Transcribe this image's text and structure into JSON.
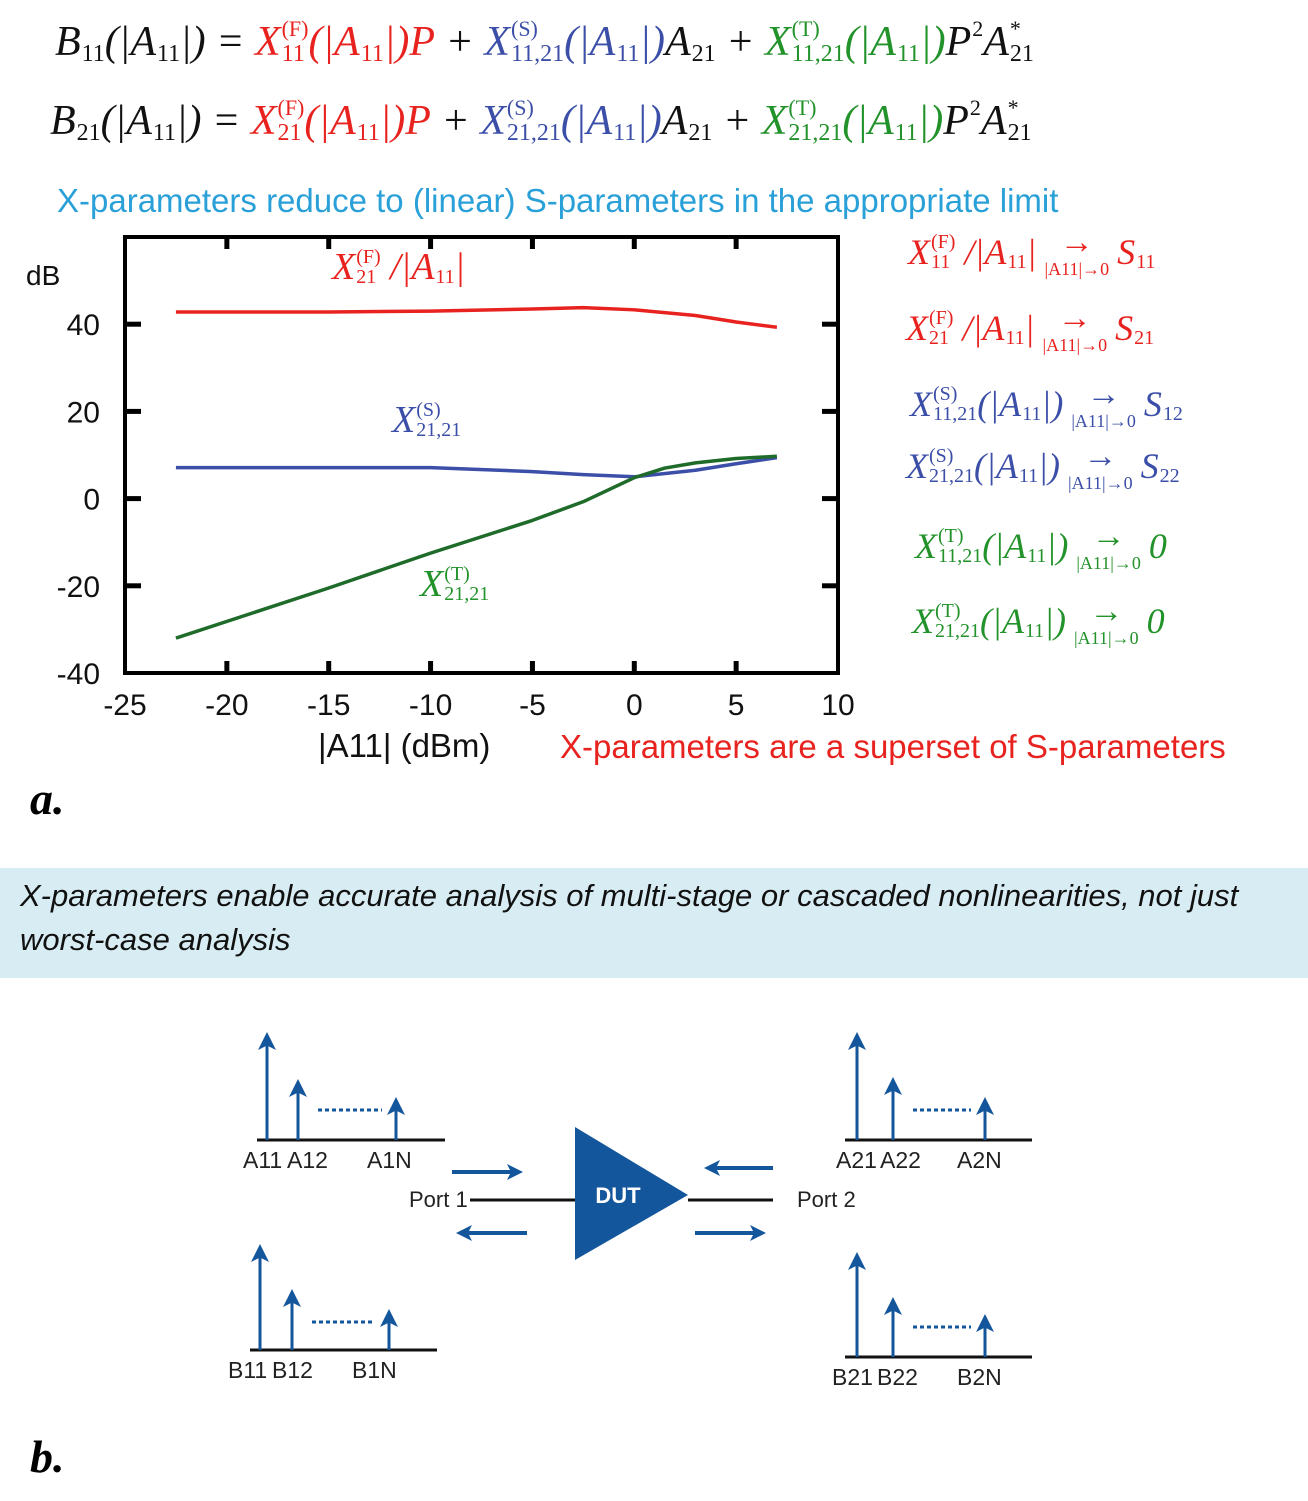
{
  "equations": [
    [
      {
        "b": "B",
        "sub": "11",
        "c": "k"
      },
      {
        "b": "(|",
        "c": "k"
      },
      {
        "b": "A",
        "sub": "11",
        "c": "k"
      },
      {
        "b": "|) = ",
        "c": "k"
      },
      {
        "b": "X",
        "sup": "(F)",
        "sub": "11",
        "c": "r"
      },
      {
        "b": "(|",
        "c": "r"
      },
      {
        "b": "A",
        "sub": "11",
        "c": "r"
      },
      {
        "b": "|)P",
        "c": "r"
      },
      {
        "b": " + ",
        "c": "k"
      },
      {
        "b": "X",
        "sup": "(S)",
        "sub": "11,21",
        "c": "b"
      },
      {
        "b": "(|",
        "c": "b"
      },
      {
        "b": "A",
        "sub": "11",
        "c": "b"
      },
      {
        "b": "|)",
        "c": "b"
      },
      {
        "b": "A",
        "sub": "21",
        "c": "k"
      },
      {
        "b": " + ",
        "c": "k"
      },
      {
        "b": "X",
        "sup": "(T)",
        "sub": "11,21",
        "c": "g"
      },
      {
        "b": "(|",
        "c": "g"
      },
      {
        "b": "A",
        "sub": "11",
        "c": "g"
      },
      {
        "b": "|)",
        "c": "g"
      },
      {
        "b": "P",
        "sup": "2",
        "c": "k"
      },
      {
        "b": "A",
        "sup": "*",
        "sub": "21",
        "c": "k"
      }
    ],
    [
      {
        "b": "B",
        "sub": "21",
        "c": "k"
      },
      {
        "b": "(|",
        "c": "k"
      },
      {
        "b": "A",
        "sub": "11",
        "c": "k"
      },
      {
        "b": "|) = ",
        "c": "k"
      },
      {
        "b": "X",
        "sup": "(F)",
        "sub": "21",
        "c": "r"
      },
      {
        "b": "(|",
        "c": "r"
      },
      {
        "b": "A",
        "sub": "11",
        "c": "r"
      },
      {
        "b": "|)P",
        "c": "r"
      },
      {
        "b": " + ",
        "c": "k"
      },
      {
        "b": "X",
        "sup": "(S)",
        "sub": "21,21",
        "c": "b"
      },
      {
        "b": "(|",
        "c": "b"
      },
      {
        "b": "A",
        "sub": "11",
        "c": "b"
      },
      {
        "b": "|)",
        "c": "b"
      },
      {
        "b": "A",
        "sub": "21",
        "c": "k"
      },
      {
        "b": " + ",
        "c": "k"
      },
      {
        "b": "X",
        "sup": "(T)",
        "sub": "21,21",
        "c": "g"
      },
      {
        "b": "(|",
        "c": "g"
      },
      {
        "b": "A",
        "sub": "11",
        "c": "g"
      },
      {
        "b": "|)",
        "c": "g"
      },
      {
        "b": "P",
        "sup": "2",
        "c": "k"
      },
      {
        "b": "A",
        "sup": "*",
        "sub": "21",
        "c": "k"
      }
    ]
  ],
  "captions": {
    "top": "X-parameters reduce to (linear)  S-parameters in the appropriate limit",
    "superset": "X-parameters are a superset of S-parameters"
  },
  "limits": [
    [
      {
        "b": "X",
        "sup": "(F)",
        "sub": "11",
        "c": "r"
      },
      {
        "b": " /|",
        "c": "r"
      },
      {
        "b": "A",
        "sub": "11",
        "c": "r"
      },
      {
        "b": "|",
        "c": "r"
      },
      {
        "arrow": "→",
        "under": "|A11|→0",
        "c": "r"
      },
      {
        "b": "S",
        "sub": "11",
        "c": "r"
      }
    ],
    [
      {
        "b": "X",
        "sup": "(F)",
        "sub": "21",
        "c": "r"
      },
      {
        "b": " /|",
        "c": "r"
      },
      {
        "b": "A",
        "sub": "11",
        "c": "r"
      },
      {
        "b": "|",
        "c": "r"
      },
      {
        "arrow": "→",
        "under": "|A11|→0",
        "c": "r"
      },
      {
        "b": "S",
        "sub": "21",
        "c": "r"
      }
    ],
    [
      {
        "b": "X",
        "sup": "(S)",
        "sub": "11,21",
        "c": "b"
      },
      {
        "b": "(|",
        "c": "b"
      },
      {
        "b": "A",
        "sub": "11",
        "c": "b"
      },
      {
        "b": "|)",
        "c": "b"
      },
      {
        "arrow": "→",
        "under": "|A11|→0",
        "c": "b"
      },
      {
        "b": "S",
        "sub": "12",
        "c": "b"
      }
    ],
    [
      {
        "b": "X",
        "sup": "(S)",
        "sub": "21,21",
        "c": "b"
      },
      {
        "b": "(|",
        "c": "b"
      },
      {
        "b": "A",
        "sub": "11",
        "c": "b"
      },
      {
        "b": "|)",
        "c": "b"
      },
      {
        "arrow": "→",
        "under": "|A11|→0",
        "c": "b"
      },
      {
        "b": "S",
        "sub": "22",
        "c": "b"
      }
    ],
    [
      {
        "b": "X",
        "sup": "(T)",
        "sub": "11,21",
        "c": "g"
      },
      {
        "b": "(|",
        "c": "g"
      },
      {
        "b": "A",
        "sub": "11",
        "c": "g"
      },
      {
        "b": "|)",
        "c": "g"
      },
      {
        "arrow": "→",
        "under": "|A11|→0",
        "c": "g"
      },
      {
        "b": "0",
        "c": "g"
      }
    ],
    [
      {
        "b": "X",
        "sup": "(T)",
        "sub": "21,21",
        "c": "g"
      },
      {
        "b": "(|",
        "c": "g"
      },
      {
        "b": "A",
        "sub": "11",
        "c": "g"
      },
      {
        "b": "|)",
        "c": "g"
      },
      {
        "arrow": "→",
        "under": "|A11|→0",
        "c": "g"
      },
      {
        "b": "0",
        "c": "g"
      }
    ]
  ],
  "chart_data": {
    "type": "line",
    "xlabel": "|A11| (dBm)",
    "ylabel": "dB",
    "xlim": [
      -25,
      10
    ],
    "ylim": [
      -40,
      60
    ],
    "xticks": [
      -25,
      -20,
      -15,
      -10,
      -5,
      0,
      5,
      10
    ],
    "yticks": [
      40,
      20,
      0,
      -20,
      -40
    ],
    "grid": false,
    "series": [
      {
        "name": "X(F)21 / |A11|",
        "color": "#e8231f",
        "label": [
          {
            "b": "X",
            "sup": "(F)",
            "sub": "21",
            "c": "r"
          },
          {
            "b": " /|",
            "c": "r"
          },
          {
            "b": "A",
            "sub": "11",
            "c": "r"
          },
          {
            "b": "|",
            "c": "r"
          }
        ],
        "x": [
          -22.5,
          -15,
          -10,
          -5,
          -2.5,
          0,
          3,
          5,
          7
        ],
        "y": [
          42.8,
          42.8,
          43,
          43.5,
          43.8,
          43.3,
          42,
          40.5,
          39.3
        ]
      },
      {
        "name": "X(S)21,21",
        "color": "#3c4fa8",
        "label": [
          {
            "b": "X",
            "sup": "(S)",
            "sub": "21,21",
            "c": "b"
          }
        ],
        "x": [
          -22.5,
          -15,
          -10,
          -5,
          -2.5,
          0,
          3,
          5,
          7
        ],
        "y": [
          7.1,
          7.1,
          7.1,
          6.2,
          5.5,
          5,
          6.5,
          8,
          9.4
        ]
      },
      {
        "name": "X(T)21,21",
        "color": "#1e6b2a",
        "label": [
          {
            "b": "X",
            "sup": "(T)",
            "sub": "21,21",
            "c": "g"
          }
        ],
        "x": [
          -22.5,
          -15,
          -10,
          -5,
          -2.5,
          0,
          1.5,
          3,
          5,
          7
        ],
        "y": [
          -32,
          -20.5,
          -12.5,
          -5,
          -0.7,
          4.8,
          7,
          8.2,
          9.2,
          9.7
        ]
      }
    ]
  },
  "panels": {
    "a": "a.",
    "b": "b."
  },
  "banner": "X-parameters enable accurate analysis of multi-stage or cascaded nonlinearities, not just worst-case analysis",
  "diagram": {
    "color": "#14569b",
    "dut": "DUT",
    "port1": "Port 1",
    "port2": "Port 2",
    "groups": [
      {
        "name": "a1",
        "labels": [
          "A11",
          "A12",
          "A1N"
        ]
      },
      {
        "name": "b1",
        "labels": [
          "B11",
          "B12",
          "B1N"
        ]
      },
      {
        "name": "a2",
        "labels": [
          "A21",
          "A22",
          "A2N"
        ]
      },
      {
        "name": "b2",
        "labels": [
          "B21",
          "B22",
          "B2N"
        ]
      }
    ]
  }
}
